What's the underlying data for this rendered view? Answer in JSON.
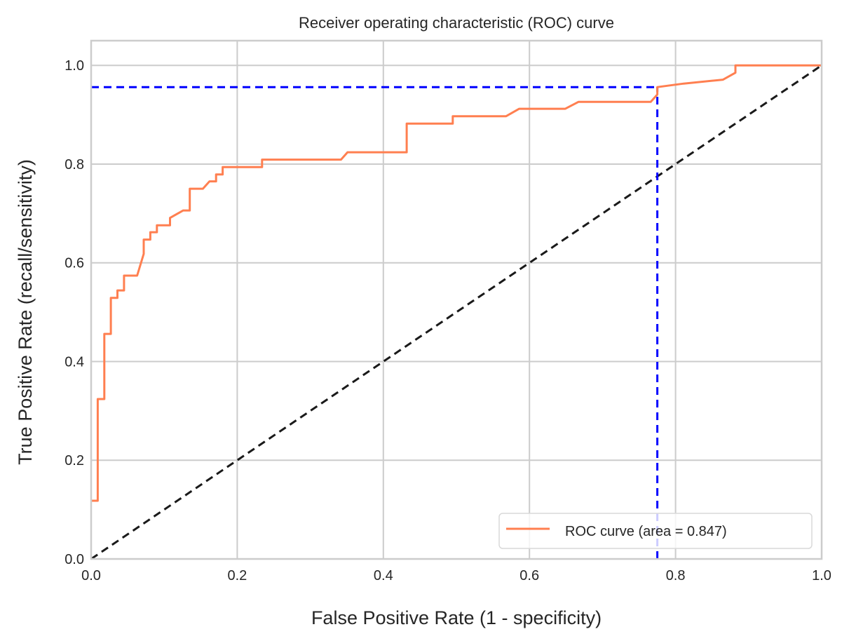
{
  "chart_data": {
    "type": "line",
    "title": "Receiver operating characteristic (ROC) curve",
    "xlabel": "False Positive Rate (1 - specificity)",
    "ylabel": "True Positive Rate (recall/sensitivity)",
    "xlim": [
      0.0,
      1.0
    ],
    "ylim": [
      0.0,
      1.05
    ],
    "xticks": [
      0.0,
      0.2,
      0.4,
      0.6,
      0.8,
      1.0
    ],
    "xtick_labels": [
      "0.0",
      "0.2",
      "0.4",
      "0.6",
      "0.8",
      "1.0"
    ],
    "yticks": [
      0.0,
      0.2,
      0.4,
      0.6,
      0.8,
      1.0
    ],
    "ytick_labels": [
      "0.0",
      "0.2",
      "0.4",
      "0.6",
      "0.8",
      "1.0"
    ],
    "grid": true,
    "legend": {
      "placement": "lower-right",
      "entries": [
        "ROC curve (area = 0.847)"
      ]
    },
    "series": [
      {
        "name": "ROC curve (area = 0.847)",
        "color": "#ff7f50",
        "style": "solid",
        "x": [
          0.0,
          0.009,
          0.009,
          0.018,
          0.018,
          0.027,
          0.027,
          0.036,
          0.036,
          0.045,
          0.045,
          0.063,
          0.072,
          0.072,
          0.081,
          0.081,
          0.09,
          0.09,
          0.108,
          0.108,
          0.126,
          0.135,
          0.135,
          0.153,
          0.162,
          0.162,
          0.171,
          0.171,
          0.18,
          0.18,
          0.234,
          0.234,
          0.342,
          0.351,
          0.432,
          0.432,
          0.495,
          0.495,
          0.568,
          0.586,
          0.649,
          0.667,
          0.766,
          0.775,
          0.775,
          0.811,
          0.865,
          0.882,
          0.882,
          1.0
        ],
        "y": [
          0.118,
          0.118,
          0.324,
          0.324,
          0.456,
          0.456,
          0.529,
          0.529,
          0.544,
          0.544,
          0.574,
          0.574,
          0.618,
          0.647,
          0.647,
          0.662,
          0.662,
          0.676,
          0.676,
          0.691,
          0.706,
          0.706,
          0.75,
          0.75,
          0.765,
          0.765,
          0.765,
          0.779,
          0.779,
          0.794,
          0.794,
          0.809,
          0.809,
          0.824,
          0.824,
          0.882,
          0.882,
          0.897,
          0.897,
          0.912,
          0.912,
          0.926,
          0.926,
          0.941,
          0.956,
          0.963,
          0.971,
          0.985,
          1.0,
          1.0
        ]
      },
      {
        "name": "chance",
        "color": "#1a1a1a",
        "style": "dashed",
        "x": [
          0.0,
          1.0
        ],
        "y": [
          0.0,
          1.0
        ]
      }
    ],
    "annotations": [
      {
        "name": "threshold-horizontal",
        "color": "#0000ff",
        "style": "dashed",
        "x": [
          0.0,
          0.775
        ],
        "y": [
          0.956,
          0.956
        ]
      },
      {
        "name": "threshold-vertical",
        "color": "#0000ff",
        "style": "dashed",
        "x": [
          0.775,
          0.775
        ],
        "y": [
          0.0,
          0.956
        ]
      }
    ]
  }
}
